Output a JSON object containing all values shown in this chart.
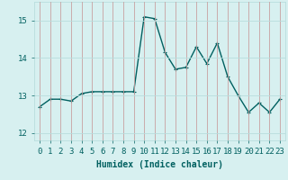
{
  "x": [
    0,
    1,
    2,
    3,
    4,
    5,
    6,
    7,
    8,
    9,
    10,
    11,
    12,
    13,
    14,
    15,
    16,
    17,
    18,
    19,
    20,
    21,
    22,
    23
  ],
  "y": [
    12.7,
    12.9,
    12.9,
    12.85,
    13.05,
    13.1,
    13.1,
    13.1,
    13.1,
    13.1,
    15.1,
    15.05,
    14.15,
    13.7,
    13.75,
    14.3,
    13.85,
    14.4,
    13.5,
    13.0,
    12.55,
    12.8,
    12.55,
    12.9
  ],
  "line_color": "#006060",
  "marker": "+",
  "markersize": 3,
  "linewidth": 1.0,
  "bg_color": "#d7f0f0",
  "grid_color": "#b8dede",
  "grid_color2": "#c8b8b8",
  "xlabel": "Humidex (Indice chaleur)",
  "xlim": [
    -0.5,
    23.5
  ],
  "ylim": [
    11.8,
    15.5
  ],
  "yticks": [
    12,
    13,
    14,
    15
  ],
  "xticks": [
    0,
    1,
    2,
    3,
    4,
    5,
    6,
    7,
    8,
    9,
    10,
    11,
    12,
    13,
    14,
    15,
    16,
    17,
    18,
    19,
    20,
    21,
    22,
    23
  ],
  "xlabel_fontsize": 7,
  "tick_fontsize": 6.5,
  "title": ""
}
